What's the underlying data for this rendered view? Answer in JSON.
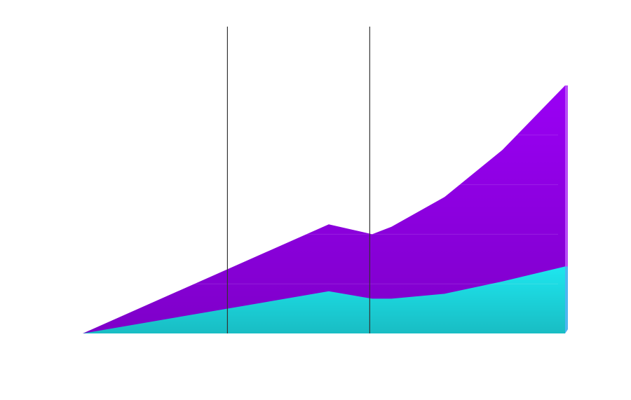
{
  "chart_data": {
    "type": "area",
    "x": [
      0,
      51,
      60,
      64,
      75,
      87,
      100
    ],
    "xlim": [
      0,
      100
    ],
    "ylim": [
      0,
      100
    ],
    "series": [
      {
        "color": "#9a00f5",
        "values": [
          0,
          44,
          40,
          43,
          55,
          74,
          100
        ]
      },
      {
        "color": "#1ee6ee",
        "values": [
          0,
          17,
          14,
          14,
          16,
          21,
          27
        ]
      }
    ],
    "grid_lines": [
      20,
      40,
      60,
      80
    ],
    "reference_lines": [
      30,
      59.5
    ]
  }
}
